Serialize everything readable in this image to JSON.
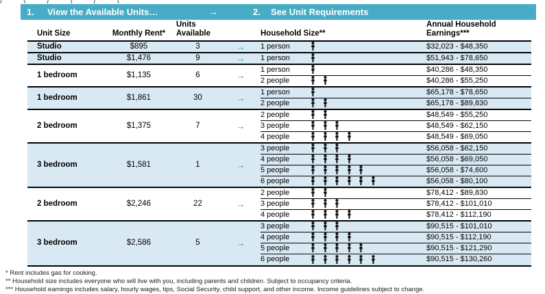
{
  "clipped_top_text": "( ) ( ) ( )",
  "colors": {
    "teal": "#47ADC7",
    "arrow_teal": "#2B9ABF",
    "row_shade": "#D9E9F4"
  },
  "header_bar": {
    "step1_number": "1.",
    "step1_label": "View the Available Units…",
    "arrow": "→",
    "step2_number": "2.",
    "step2_label": "See Unit Requirements"
  },
  "columns": {
    "unit_size": "Unit Size",
    "monthly_rent": "Monthly Rent*",
    "units_available_line1": "Units",
    "units_available_line2": "Available",
    "household_size": "Household Size**",
    "earnings_line1": "Annual Household",
    "earnings_line2": "Earnings***"
  },
  "row_arrow": "→",
  "groups": [
    {
      "unit_size": "Studio",
      "monthly_rent": "$895",
      "units_available": "3",
      "shaded": true,
      "requirements": [
        {
          "household_size": "1 person",
          "people": 1,
          "earnings": "$32,023 - $48,350"
        }
      ]
    },
    {
      "unit_size": "Studio",
      "monthly_rent": "$1,476",
      "units_available": "9",
      "shaded": true,
      "requirements": [
        {
          "household_size": "1 person",
          "people": 1,
          "earnings": "$51,943 - $78,650"
        }
      ]
    },
    {
      "unit_size": "1 bedroom",
      "monthly_rent": "$1,135",
      "units_available": "6",
      "shaded": false,
      "requirements": [
        {
          "household_size": "1 person",
          "people": 1,
          "earnings": "$40,286 - $48,350"
        },
        {
          "household_size": "2 people",
          "people": 2,
          "earnings": "$40,286 - $55,250"
        }
      ]
    },
    {
      "unit_size": "1 bedroom",
      "monthly_rent": "$1,861",
      "units_available": "30",
      "shaded": true,
      "requirements": [
        {
          "household_size": "1 person",
          "people": 1,
          "earnings": "$65,178 - $78,650"
        },
        {
          "household_size": "2 people",
          "people": 2,
          "earnings": "$65,178 - $89,830"
        }
      ]
    },
    {
      "unit_size": "2 bedroom",
      "monthly_rent": "$1,375",
      "units_available": "7",
      "shaded": false,
      "requirements": [
        {
          "household_size": "2 people",
          "people": 2,
          "earnings": "$48,549 - $55,250"
        },
        {
          "household_size": "3 people",
          "people": 3,
          "earnings": "$48,549 - $62,150"
        },
        {
          "household_size": "4 people",
          "people": 4,
          "earnings": "$48,549 - $69,050"
        }
      ]
    },
    {
      "unit_size": "3 bedroom",
      "monthly_rent": "$1,581",
      "units_available": "1",
      "shaded": true,
      "requirements": [
        {
          "household_size": "3 people",
          "people": 3,
          "earnings": "$56,058 - $62,150"
        },
        {
          "household_size": "4 people",
          "people": 4,
          "earnings": "$56,058 - $69,050"
        },
        {
          "household_size": "5 people",
          "people": 5,
          "earnings": "$56,058 - $74,600"
        },
        {
          "household_size": "6 people",
          "people": 6,
          "earnings": "$56,058 - $80,100"
        }
      ]
    },
    {
      "unit_size": "2 bedroom",
      "monthly_rent": "$2,246",
      "units_available": "22",
      "shaded": false,
      "requirements": [
        {
          "household_size": "2 people",
          "people": 2,
          "earnings": "$78,412 - $89,830"
        },
        {
          "household_size": "3 people",
          "people": 3,
          "earnings": "$78,412 - $101,010"
        },
        {
          "household_size": "4 people",
          "people": 4,
          "earnings": "$78,412 - $112,190"
        }
      ]
    },
    {
      "unit_size": "3 bedroom",
      "monthly_rent": "$2,586",
      "units_available": "5",
      "shaded": true,
      "requirements": [
        {
          "household_size": "3 people",
          "people": 3,
          "earnings": "$90,515 - $101,010"
        },
        {
          "household_size": "4 people",
          "people": 4,
          "earnings": "$90,515 - $112,190"
        },
        {
          "household_size": "5 people",
          "people": 5,
          "earnings": "$90,515 - $121,290"
        },
        {
          "household_size": "6 people",
          "people": 6,
          "earnings": "$90,515 - $130,260"
        }
      ]
    }
  ],
  "footnotes": [
    "* Rent includes gas for cooking.",
    "** Household size includes everyone who will live with you, including parents and children. Subject to occupancy criteria.",
    "*** Household earnings includes salary, hourly wages, tips, Social Security, child support, and other income. Income guidelines subject to change."
  ]
}
